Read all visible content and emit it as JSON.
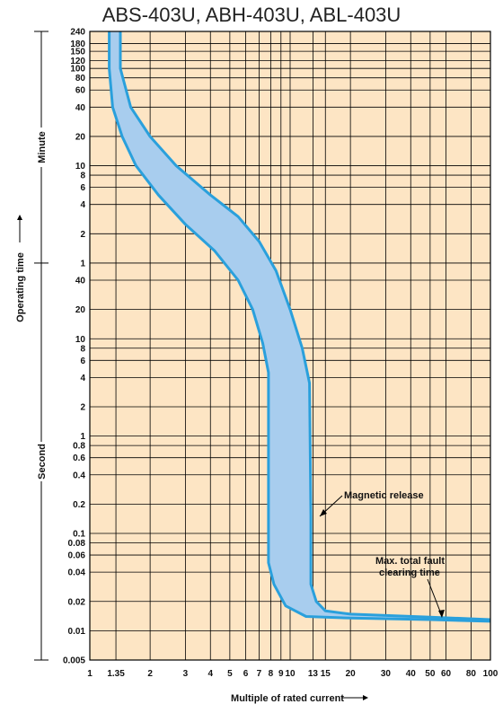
{
  "chart_data": {
    "type": "line",
    "title": "ABS-403U, ABH-403U, ABL-403U",
    "xlabel": "Multiple of rated current",
    "ylabel": "Operating time",
    "y_unit_upper": "Minute",
    "y_unit_lower": "Second",
    "x_scale": "log",
    "y_scale": "log",
    "xlim": [
      1,
      100
    ],
    "ylim_seconds": [
      0.005,
      14400
    ],
    "x_ticks": [
      {
        "label": "1",
        "value": 1
      },
      {
        "label": "1.35",
        "value": 1.35
      },
      {
        "label": "2",
        "value": 2
      },
      {
        "label": "3",
        "value": 3
      },
      {
        "label": "4",
        "value": 4
      },
      {
        "label": "5",
        "value": 5
      },
      {
        "label": "6",
        "value": 6
      },
      {
        "label": "7",
        "value": 7
      },
      {
        "label": "8",
        "value": 8
      },
      {
        "label": "9",
        "value": 9
      },
      {
        "label": "10",
        "value": 10
      },
      {
        "label": "13",
        "value": 13
      },
      {
        "label": "15",
        "value": 15
      },
      {
        "label": "20",
        "value": 20
      },
      {
        "label": "30",
        "value": 30
      },
      {
        "label": "40",
        "value": 40
      },
      {
        "label": "50",
        "value": 50
      },
      {
        "label": "60",
        "value": 60
      },
      {
        "label": "80",
        "value": 80
      },
      {
        "label": "100",
        "value": 100
      }
    ],
    "y_ticks_minute": [
      {
        "label": "240",
        "value": 240
      },
      {
        "label": "180",
        "value": 180
      },
      {
        "label": "150",
        "value": 150
      },
      {
        "label": "120",
        "value": 120
      },
      {
        "label": "100",
        "value": 100
      },
      {
        "label": "80",
        "value": 80
      },
      {
        "label": "60",
        "value": 60
      },
      {
        "label": "40",
        "value": 40
      },
      {
        "label": "20",
        "value": 20
      },
      {
        "label": "10",
        "value": 10
      },
      {
        "label": "8",
        "value": 8
      },
      {
        "label": "6",
        "value": 6
      },
      {
        "label": "4",
        "value": 4
      },
      {
        "label": "2",
        "value": 2
      },
      {
        "label": "1",
        "value": 1
      }
    ],
    "y_ticks_second": [
      {
        "label": "40",
        "value": 40
      },
      {
        "label": "20",
        "value": 20
      },
      {
        "label": "10",
        "value": 10
      },
      {
        "label": "8",
        "value": 8
      },
      {
        "label": "6",
        "value": 6
      },
      {
        "label": "4",
        "value": 4
      },
      {
        "label": "2",
        "value": 2
      },
      {
        "label": "1",
        "value": 1
      },
      {
        "label": "0.8",
        "value": 0.8
      },
      {
        "label": "0.6",
        "value": 0.6
      },
      {
        "label": "0.4",
        "value": 0.4
      },
      {
        "label": "0.2",
        "value": 0.2
      },
      {
        "label": "0.1",
        "value": 0.1
      },
      {
        "label": "0.08",
        "value": 0.08
      },
      {
        "label": "0.06",
        "value": 0.06
      },
      {
        "label": "0.04",
        "value": 0.04
      },
      {
        "label": "0.02",
        "value": 0.02
      },
      {
        "label": "0.01",
        "value": 0.01
      },
      {
        "label": "0.005",
        "value": 0.005
      }
    ],
    "series": [
      {
        "band_edge": "left",
        "points_seconds": [
          [
            1.25,
            14400
          ],
          [
            1.25,
            6000
          ],
          [
            1.3,
            2400
          ],
          [
            1.45,
            1200
          ],
          [
            1.7,
            600
          ],
          [
            2.2,
            300
          ],
          [
            3.0,
            150
          ],
          [
            4.2,
            80
          ],
          [
            5.5,
            40
          ],
          [
            6.5,
            20
          ],
          [
            7.3,
            9
          ],
          [
            7.8,
            4.5
          ],
          [
            7.8,
            0.05
          ],
          [
            8.3,
            0.03
          ],
          [
            9.5,
            0.018
          ],
          [
            12,
            0.014
          ],
          [
            20,
            0.0135
          ],
          [
            50,
            0.013
          ],
          [
            100,
            0.0125
          ]
        ]
      },
      {
        "band_edge": "right",
        "points_seconds": [
          [
            1.42,
            14400
          ],
          [
            1.42,
            6000
          ],
          [
            1.6,
            2400
          ],
          [
            2.0,
            1200
          ],
          [
            2.7,
            600
          ],
          [
            4.0,
            300
          ],
          [
            5.5,
            180
          ],
          [
            7.0,
            100
          ],
          [
            8.5,
            50
          ],
          [
            10.0,
            20
          ],
          [
            11.5,
            8
          ],
          [
            12.5,
            3.5
          ],
          [
            12.7,
            0.15
          ],
          [
            12.7,
            0.03
          ],
          [
            13.5,
            0.02
          ],
          [
            15,
            0.016
          ],
          [
            20,
            0.0148
          ],
          [
            50,
            0.0138
          ],
          [
            100,
            0.013
          ]
        ]
      }
    ],
    "annotations": [
      {
        "text": "Magnetic release",
        "x": 13,
        "y_seconds": 0.2
      },
      {
        "text": "Max. total fault",
        "x": 60,
        "y_seconds": 0.045
      },
      {
        "text": "clearing time",
        "x": 60,
        "y_seconds": 0.03
      }
    ],
    "grid": true,
    "colors": {
      "background": "#fde5c4",
      "band_fill": "#a8cdee",
      "band_edge": "#2aa0dc",
      "grid": "#000000"
    }
  }
}
